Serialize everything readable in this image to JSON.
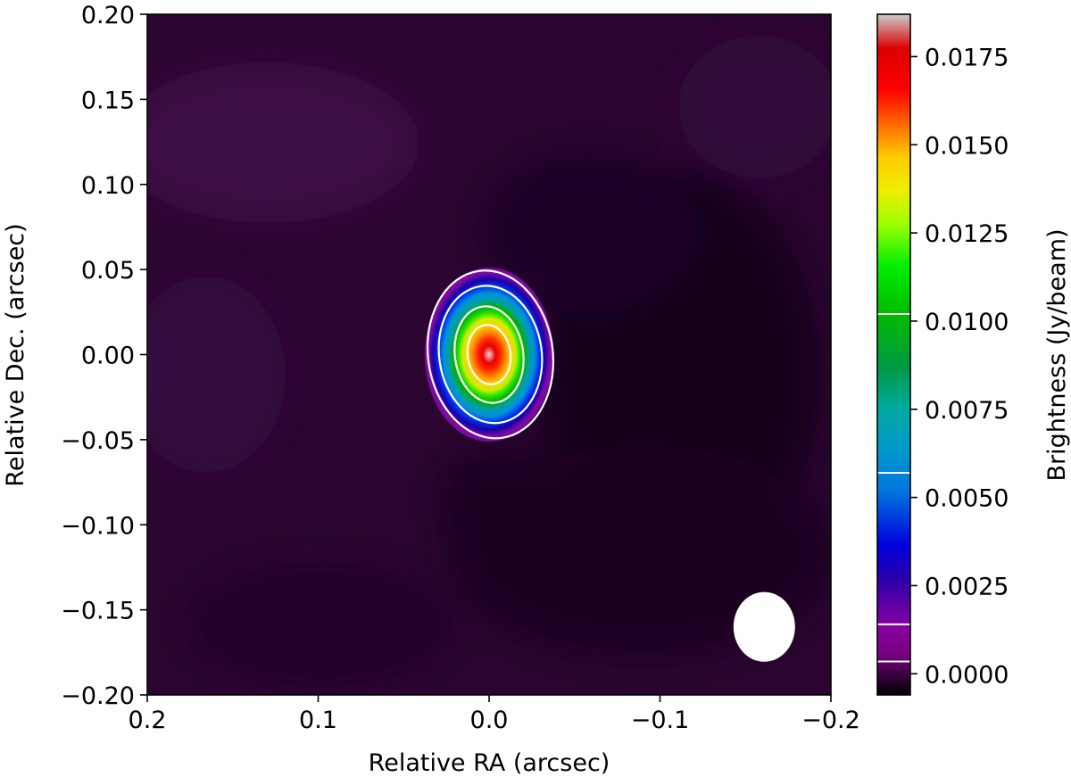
{
  "chart_data": {
    "type": "heatmap",
    "xlabel": "Relative RA (arcsec)",
    "ylabel": "Relative Dec. (arcsec)",
    "xlim": [
      0.2,
      -0.2
    ],
    "ylim": [
      -0.2,
      0.2
    ],
    "x_ticks": [
      0.2,
      0.1,
      0.0,
      -0.1,
      -0.2
    ],
    "x_tick_labels": [
      "0.2",
      "0.1",
      "0.0",
      "−0.1",
      "−0.2"
    ],
    "y_ticks": [
      0.2,
      0.15,
      0.1,
      0.05,
      0.0,
      -0.05,
      -0.1,
      -0.15,
      -0.2
    ],
    "y_tick_labels": [
      "0.20",
      "0.15",
      "0.10",
      "0.05",
      "0.00",
      "−0.05",
      "−0.10",
      "−0.15",
      "−0.20"
    ],
    "colorbar": {
      "label": "Brightness (Jy/beam)",
      "range": [
        -0.0006,
        0.0187
      ],
      "ticks": [
        0.0,
        0.0025,
        0.005,
        0.0075,
        0.01,
        0.0125,
        0.015,
        0.0175
      ],
      "tick_labels": [
        "0.0000",
        "0.0025",
        "0.0050",
        "0.0075",
        "0.0100",
        "0.0125",
        "0.0150",
        "0.0175"
      ],
      "colormap": "nipy_spectral",
      "contour_marks": [
        0.00035,
        0.0014,
        0.0057,
        0.0102
      ]
    },
    "source": {
      "peak_brightness": 0.0187,
      "center_ra": 0.0,
      "center_dec": 0.0,
      "sigma_ra_arcsec": 0.0175,
      "sigma_dec_arcsec": 0.021,
      "background_level": 0.0
    },
    "contours": [
      {
        "level": 0.00035,
        "semi_ra": 0.0365,
        "semi_dec": 0.0495
      },
      {
        "level": 0.0014,
        "semi_ra": 0.03,
        "semi_dec": 0.0405
      },
      {
        "level": 0.0057,
        "semi_ra": 0.02,
        "semi_dec": 0.0285
      },
      {
        "level": 0.0102,
        "semi_ra": 0.0125,
        "semi_dec": 0.0175
      }
    ],
    "beam": {
      "center_ra": -0.161,
      "center_dec": -0.16,
      "major_arcsec": 0.041,
      "minor_arcsec": 0.036,
      "color": "#ffffff"
    },
    "colors": {
      "background_dark": "#240026",
      "background_mid": "#3a0a40",
      "contour": "#ffffff"
    }
  }
}
